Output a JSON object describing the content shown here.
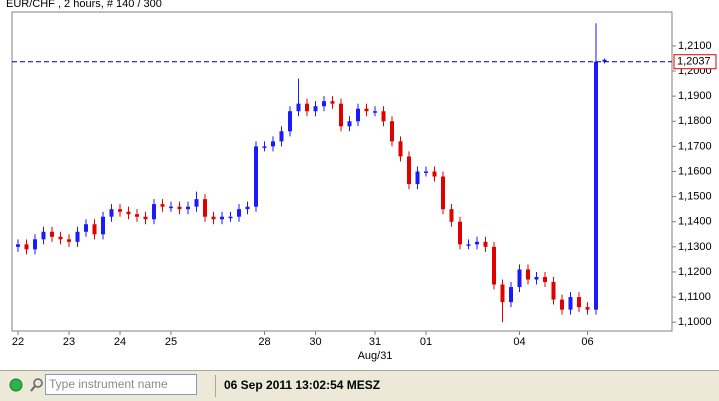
{
  "chart_data": {
    "type": "candlestick",
    "title": "EUR/CHF , 2 hours, # 140 / 300",
    "categories": [
      "22",
      null,
      null,
      null,
      null,
      null,
      "23",
      null,
      null,
      null,
      null,
      null,
      "24",
      null,
      null,
      null,
      null,
      null,
      "25",
      null,
      null,
      null,
      null,
      null,
      null,
      null,
      null,
      null,
      null,
      "28",
      null,
      null,
      null,
      null,
      null,
      "30",
      null,
      null,
      null,
      null,
      null,
      null,
      "31",
      null,
      null,
      null,
      null,
      null,
      "01",
      null,
      null,
      null,
      null,
      null,
      null,
      null,
      null,
      null,
      null,
      "04",
      null,
      null,
      null,
      null,
      null,
      null,
      null,
      "06",
      null,
      null
    ],
    "x_sublabel": "Aug/31",
    "open": [
      1.13,
      1.131,
      1.129,
      1.133,
      1.136,
      1.134,
      1.133,
      1.132,
      1.136,
      1.139,
      1.135,
      1.142,
      1.145,
      1.144,
      1.143,
      1.142,
      1.141,
      1.147,
      1.146,
      1.146,
      1.145,
      1.146,
      1.149,
      1.142,
      1.141,
      1.142,
      1.142,
      1.145,
      1.146,
      1.17,
      1.17,
      1.172,
      1.176,
      1.184,
      1.187,
      1.184,
      1.186,
      1.188,
      1.187,
      1.178,
      1.18,
      1.185,
      1.184,
      1.184,
      1.18,
      1.172,
      1.166,
      1.155,
      1.16,
      1.16,
      1.158,
      1.145,
      1.14,
      1.131,
      1.131,
      1.132,
      1.13,
      1.115,
      1.108,
      1.114,
      1.121,
      1.117,
      1.118,
      1.116,
      1.109,
      1.105,
      1.11,
      1.106,
      1.105,
      1.2037
    ],
    "high": [
      1.133,
      1.133,
      1.135,
      1.138,
      1.138,
      1.136,
      1.135,
      1.138,
      1.141,
      1.141,
      1.144,
      1.147,
      1.147,
      1.146,
      1.145,
      1.144,
      1.149,
      1.149,
      1.148,
      1.148,
      1.148,
      1.152,
      1.151,
      1.144,
      1.144,
      1.144,
      1.147,
      1.148,
      1.172,
      1.172,
      1.174,
      1.178,
      1.186,
      1.197,
      1.189,
      1.188,
      1.19,
      1.19,
      1.189,
      1.182,
      1.187,
      1.187,
      1.186,
      1.186,
      1.182,
      1.174,
      1.168,
      1.162,
      1.162,
      1.162,
      1.16,
      1.147,
      1.142,
      1.133,
      1.134,
      1.134,
      1.132,
      1.117,
      1.116,
      1.123,
      1.123,
      1.12,
      1.12,
      1.118,
      1.111,
      1.112,
      1.112,
      1.108,
      1.219,
      1.205
    ],
    "low": [
      1.128,
      1.127,
      1.127,
      1.131,
      1.132,
      1.131,
      1.13,
      1.13,
      1.134,
      1.133,
      1.133,
      1.14,
      1.142,
      1.141,
      1.14,
      1.139,
      1.139,
      1.144,
      1.144,
      1.143,
      1.143,
      1.144,
      1.14,
      1.139,
      1.139,
      1.14,
      1.14,
      1.143,
      1.144,
      1.168,
      1.168,
      1.17,
      1.174,
      1.182,
      1.182,
      1.182,
      1.184,
      1.185,
      1.176,
      1.176,
      1.178,
      1.182,
      1.182,
      1.178,
      1.17,
      1.164,
      1.153,
      1.153,
      1.158,
      1.156,
      1.143,
      1.138,
      1.129,
      1.129,
      1.129,
      1.128,
      1.113,
      1.1,
      1.106,
      1.112,
      1.115,
      1.115,
      1.114,
      1.107,
      1.103,
      1.103,
      1.104,
      1.103,
      1.103,
      1.203
    ],
    "close": [
      1.131,
      1.129,
      1.133,
      1.136,
      1.134,
      1.133,
      1.132,
      1.136,
      1.139,
      1.135,
      1.142,
      1.145,
      1.144,
      1.143,
      1.142,
      1.141,
      1.147,
      1.146,
      1.146,
      1.145,
      1.146,
      1.149,
      1.142,
      1.141,
      1.142,
      1.142,
      1.145,
      1.146,
      1.17,
      1.17,
      1.172,
      1.176,
      1.184,
      1.187,
      1.184,
      1.186,
      1.188,
      1.187,
      1.178,
      1.18,
      1.185,
      1.184,
      1.184,
      1.18,
      1.172,
      1.166,
      1.155,
      1.16,
      1.16,
      1.158,
      1.145,
      1.14,
      1.131,
      1.131,
      1.132,
      1.13,
      1.115,
      1.108,
      1.114,
      1.121,
      1.117,
      1.118,
      1.116,
      1.109,
      1.105,
      1.11,
      1.106,
      1.105,
      1.2037,
      1.2045
    ],
    "up_color": "#1a1aff",
    "down_color": "#e00000",
    "ylim": [
      1.0965,
      1.2235
    ],
    "yticks": [
      {
        "value": 1.1,
        "label": "1,1000"
      },
      {
        "value": 1.11,
        "label": "1,1100"
      },
      {
        "value": 1.12,
        "label": "1,1200"
      },
      {
        "value": 1.13,
        "label": "1,1300"
      },
      {
        "value": 1.14,
        "label": "1,1400"
      },
      {
        "value": 1.15,
        "label": "1,1500"
      },
      {
        "value": 1.16,
        "label": "1,1600"
      },
      {
        "value": 1.17,
        "label": "1,1700"
      },
      {
        "value": 1.18,
        "label": "1,1800"
      },
      {
        "value": 1.19,
        "label": "1,1900"
      },
      {
        "value": 1.2,
        "label": "1,2000"
      },
      {
        "value": 1.21,
        "label": "1,2100"
      }
    ],
    "price_line": {
      "value": 1.2037,
      "label": "1,2037"
    },
    "grid": false
  },
  "status_bar": {
    "search_placeholder": "Type instrument name",
    "timestamp": "06 Sep 2011 13:02:54 MESZ"
  }
}
